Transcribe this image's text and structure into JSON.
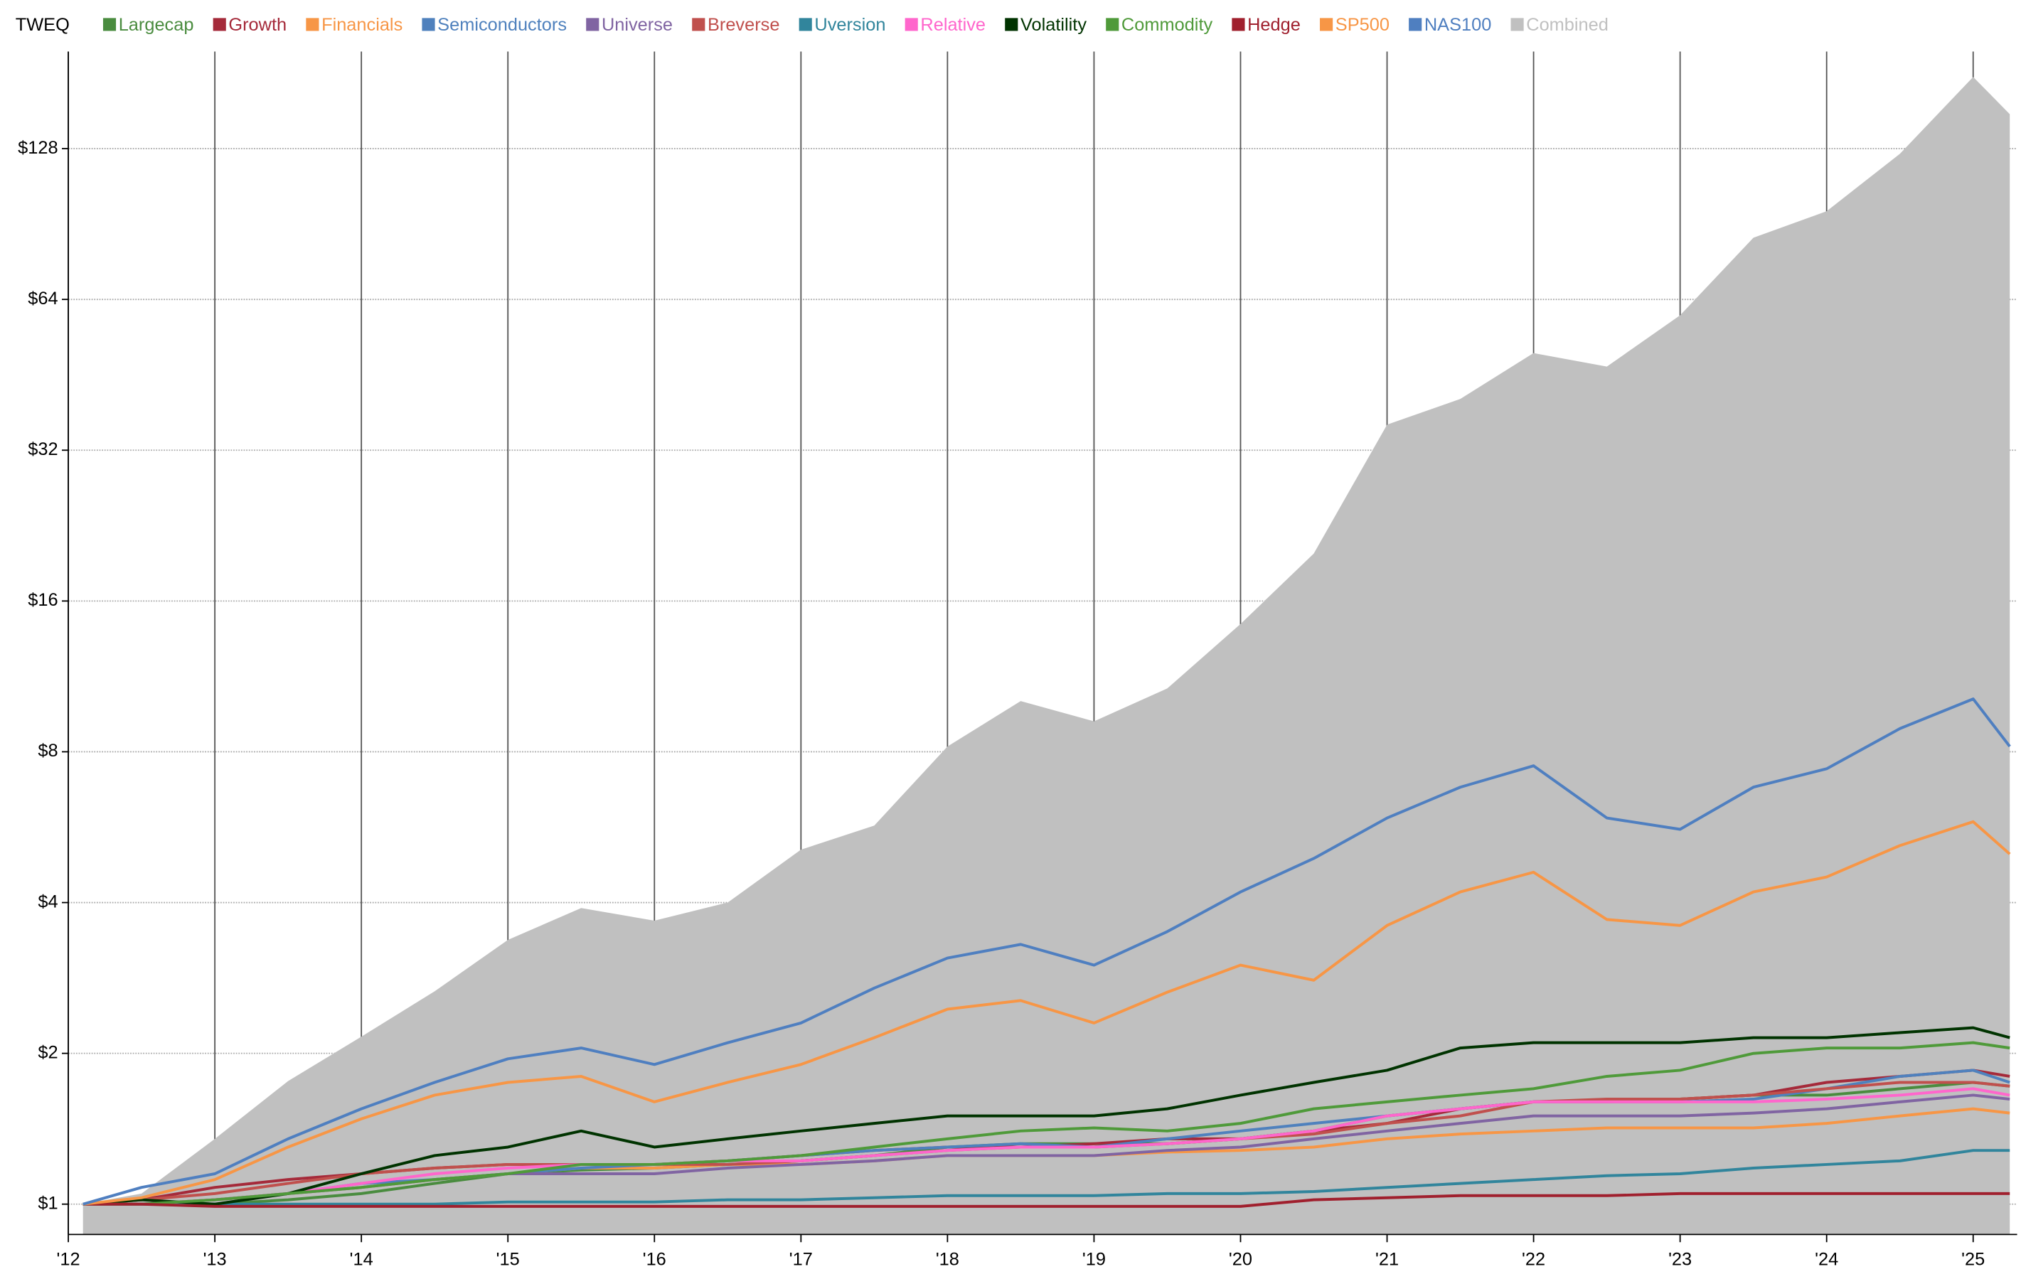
{
  "chart_data": {
    "type": "line",
    "title": "TWEQ",
    "log_scale": true,
    "grid": true,
    "x": [
      2012.1,
      2012.5,
      2013,
      2013.5,
      2014,
      2014.5,
      2015,
      2015.5,
      2016,
      2016.5,
      2017,
      2017.5,
      2018,
      2018.5,
      2019,
      2019.5,
      2020,
      2020.5,
      2021,
      2021.5,
      2022,
      2022.5,
      2023,
      2023.5,
      2024,
      2024.5,
      2025,
      2025.25
    ],
    "xlim": [
      2012,
      2025.3
    ],
    "xticks": [
      {
        "value": 2012,
        "label": "'12"
      },
      {
        "value": 2013,
        "label": "'13"
      },
      {
        "value": 2014,
        "label": "'14"
      },
      {
        "value": 2015,
        "label": "'15"
      },
      {
        "value": 2016,
        "label": "'16"
      },
      {
        "value": 2017,
        "label": "'17"
      },
      {
        "value": 2018,
        "label": "'18"
      },
      {
        "value": 2019,
        "label": "'19"
      },
      {
        "value": 2020,
        "label": "'20"
      },
      {
        "value": 2021,
        "label": "'21"
      },
      {
        "value": 2022,
        "label": "'22"
      },
      {
        "value": 2023,
        "label": "'23"
      },
      {
        "value": 2024,
        "label": "'24"
      },
      {
        "value": 2025,
        "label": "'25"
      }
    ],
    "ylim": [
      0.87,
      200
    ],
    "yticks": [
      {
        "value": 1,
        "label": "$1"
      },
      {
        "value": 2,
        "label": "$2"
      },
      {
        "value": 4,
        "label": "$4"
      },
      {
        "value": 8,
        "label": "$8"
      },
      {
        "value": 16,
        "label": "$16"
      },
      {
        "value": 32,
        "label": "$32"
      },
      {
        "value": 64,
        "label": "$64"
      },
      {
        "value": 128,
        "label": "$128"
      }
    ],
    "series": [
      {
        "name": "Largecap",
        "color": "#4a8c3f",
        "values": [
          1.0,
          1.0,
          1.0,
          1.02,
          1.05,
          1.1,
          1.15,
          1.17,
          1.18,
          1.2,
          1.22,
          1.25,
          1.3,
          1.32,
          1.32,
          1.32,
          1.35,
          1.4,
          1.5,
          1.55,
          1.6,
          1.6,
          1.62,
          1.65,
          1.65,
          1.7,
          1.75,
          1.72
        ]
      },
      {
        "name": "Growth",
        "color": "#a52a3a",
        "values": [
          1.0,
          1.02,
          1.08,
          1.12,
          1.15,
          1.18,
          1.2,
          1.2,
          1.2,
          1.22,
          1.25,
          1.28,
          1.3,
          1.3,
          1.32,
          1.35,
          1.35,
          1.4,
          1.45,
          1.55,
          1.6,
          1.6,
          1.62,
          1.65,
          1.75,
          1.8,
          1.85,
          1.8
        ]
      },
      {
        "name": "Financials",
        "color": "#f79646",
        "values": [
          1.0,
          1.0,
          1.02,
          1.05,
          1.08,
          1.12,
          1.15,
          1.18,
          1.18,
          1.2,
          1.2,
          1.22,
          1.25,
          1.25,
          1.25,
          1.27,
          1.28,
          1.3,
          1.35,
          1.38,
          1.4,
          1.42,
          1.42,
          1.42,
          1.45,
          1.5,
          1.55,
          1.52
        ]
      },
      {
        "name": "Semiconductors",
        "color": "#4f81bd",
        "values": [
          1.0,
          1.0,
          1.02,
          1.05,
          1.1,
          1.12,
          1.15,
          1.18,
          1.2,
          1.22,
          1.25,
          1.28,
          1.3,
          1.32,
          1.3,
          1.35,
          1.4,
          1.45,
          1.5,
          1.55,
          1.6,
          1.6,
          1.6,
          1.62,
          1.7,
          1.8,
          1.85,
          1.75
        ]
      },
      {
        "name": "Universe",
        "color": "#8064a2",
        "values": [
          1.0,
          1.0,
          1.02,
          1.05,
          1.08,
          1.12,
          1.15,
          1.15,
          1.15,
          1.18,
          1.2,
          1.22,
          1.25,
          1.25,
          1.25,
          1.28,
          1.3,
          1.35,
          1.4,
          1.45,
          1.5,
          1.5,
          1.5,
          1.52,
          1.55,
          1.6,
          1.65,
          1.62
        ]
      },
      {
        "name": "Breverse",
        "color": "#c0504d",
        "values": [
          1.0,
          1.02,
          1.05,
          1.1,
          1.15,
          1.18,
          1.2,
          1.2,
          1.2,
          1.2,
          1.22,
          1.25,
          1.28,
          1.3,
          1.3,
          1.32,
          1.35,
          1.38,
          1.45,
          1.5,
          1.6,
          1.62,
          1.62,
          1.65,
          1.7,
          1.75,
          1.75,
          1.72
        ]
      },
      {
        "name": "Uversion",
        "color": "#31859c",
        "values": [
          1.0,
          1.0,
          1.0,
          1.0,
          1.0,
          1.0,
          1.01,
          1.01,
          1.01,
          1.02,
          1.02,
          1.03,
          1.04,
          1.04,
          1.04,
          1.05,
          1.05,
          1.06,
          1.08,
          1.1,
          1.12,
          1.14,
          1.15,
          1.18,
          1.2,
          1.22,
          1.28,
          1.28
        ]
      },
      {
        "name": "Relative",
        "color": "#ff66cc",
        "values": [
          1.0,
          1.0,
          1.02,
          1.05,
          1.1,
          1.15,
          1.18,
          1.2,
          1.2,
          1.22,
          1.22,
          1.25,
          1.28,
          1.3,
          1.3,
          1.32,
          1.35,
          1.4,
          1.5,
          1.55,
          1.6,
          1.6,
          1.6,
          1.6,
          1.62,
          1.65,
          1.7,
          1.65
        ]
      },
      {
        "name": "Volatility",
        "color": "#003300",
        "values": [
          1.0,
          1.02,
          1.0,
          1.05,
          1.15,
          1.25,
          1.3,
          1.4,
          1.3,
          1.35,
          1.4,
          1.45,
          1.5,
          1.5,
          1.5,
          1.55,
          1.65,
          1.75,
          1.85,
          2.05,
          2.1,
          2.1,
          2.1,
          2.15,
          2.15,
          2.2,
          2.25,
          2.15
        ]
      },
      {
        "name": "Commodity",
        "color": "#4f9a3a",
        "values": [
          1.0,
          1.0,
          1.02,
          1.05,
          1.08,
          1.12,
          1.15,
          1.2,
          1.2,
          1.22,
          1.25,
          1.3,
          1.35,
          1.4,
          1.42,
          1.4,
          1.45,
          1.55,
          1.6,
          1.65,
          1.7,
          1.8,
          1.85,
          2.0,
          2.05,
          2.05,
          2.1,
          2.05
        ]
      },
      {
        "name": "Hedge",
        "color": "#a0202e",
        "values": [
          1.0,
          1.0,
          0.99,
          0.99,
          0.99,
          0.99,
          0.99,
          0.99,
          0.99,
          0.99,
          0.99,
          0.99,
          0.99,
          0.99,
          0.99,
          0.99,
          0.99,
          1.02,
          1.03,
          1.04,
          1.04,
          1.04,
          1.05,
          1.05,
          1.05,
          1.05,
          1.05,
          1.05
        ]
      },
      {
        "name": "SP500",
        "color": "#f79646",
        "values": [
          1.0,
          1.03,
          1.12,
          1.3,
          1.48,
          1.65,
          1.75,
          1.8,
          1.6,
          1.75,
          1.9,
          2.15,
          2.45,
          2.55,
          2.3,
          2.65,
          3.0,
          2.8,
          3.6,
          4.2,
          4.6,
          3.7,
          3.6,
          4.2,
          4.5,
          5.2,
          5.8,
          5.0
        ]
      },
      {
        "name": "NAS100",
        "color": "#4f7fc0",
        "values": [
          1.0,
          1.08,
          1.15,
          1.35,
          1.55,
          1.75,
          1.95,
          2.05,
          1.9,
          2.1,
          2.3,
          2.7,
          3.1,
          3.3,
          3.0,
          3.5,
          4.2,
          4.9,
          5.9,
          6.8,
          7.5,
          5.9,
          5.6,
          6.8,
          7.4,
          8.9,
          10.2,
          8.2
        ]
      },
      {
        "name": "Combined",
        "color": "#c0c0c0",
        "area": true,
        "values": [
          1.0,
          1.05,
          1.35,
          1.76,
          2.16,
          2.66,
          3.37,
          3.9,
          3.68,
          4.0,
          5.1,
          5.7,
          8.2,
          10.1,
          9.2,
          10.7,
          14.4,
          19.9,
          36,
          40.5,
          50,
          47,
          59.5,
          85,
          96,
          125,
          178,
          150
        ]
      }
    ]
  }
}
